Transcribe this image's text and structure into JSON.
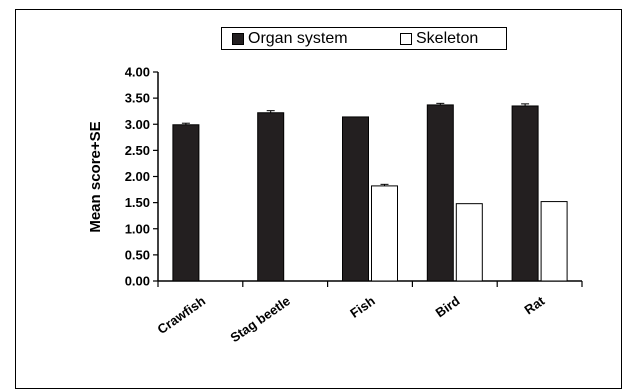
{
  "chart_data": {
    "type": "bar",
    "categories": [
      "Crawfish",
      "Stag beetle",
      "Fish",
      "Bird",
      "Rat"
    ],
    "series": [
      {
        "name": "Organ system",
        "color": "#231f20",
        "values": [
          2.99,
          3.22,
          3.14,
          3.37,
          3.35
        ],
        "errors": [
          0.03,
          0.04,
          0.0,
          0.03,
          0.04
        ]
      },
      {
        "name": "Skeleton",
        "color": "#ffffff",
        "values": [
          null,
          null,
          1.82,
          1.48,
          1.52
        ],
        "errors": [
          null,
          null,
          0.03,
          0.0,
          0.0
        ]
      }
    ],
    "ylabel": "Mean score+SE",
    "ylim": [
      0,
      4
    ],
    "yticks": [
      "0.00",
      "0.50",
      "1.00",
      "1.50",
      "2.00",
      "2.50",
      "3.00",
      "3.50",
      "4.00"
    ],
    "grid": false,
    "legend_position": "top"
  }
}
